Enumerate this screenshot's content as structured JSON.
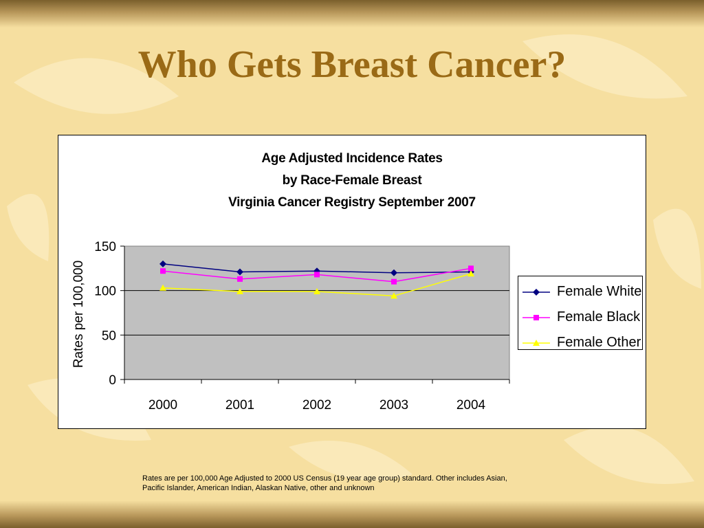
{
  "slide": {
    "title": "Who Gets Breast Cancer?",
    "footnote_line1": "Rates are per 100,000 Age Adjusted to 2000 US Census (19 year age group) standard.  Other includes Asian,",
    "footnote_line2": "Pacific Islander, American Indian, Alaskan Native, other and unknown",
    "title_color": "#9a6a16",
    "background_color": "#f6dfa0"
  },
  "chart_data": {
    "type": "line",
    "title_lines": [
      "Age Adjusted Incidence Rates",
      "by Race-Female Breast",
      "Virginia Cancer Registry September 2007"
    ],
    "xlabel": "",
    "ylabel": "Rates per 100,000",
    "categories": [
      "2000",
      "2001",
      "2002",
      "2003",
      "2004"
    ],
    "ylim": [
      0,
      150
    ],
    "yticks": [
      0,
      50,
      100,
      150
    ],
    "plot_background": "#c0c0c0",
    "grid": "horizontal major gridlines",
    "legend_position": "right",
    "series": [
      {
        "name": "Female White",
        "values": [
          130,
          121,
          122,
          120,
          121
        ],
        "color": "#000080",
        "marker": "diamond"
      },
      {
        "name": "Female Black",
        "values": [
          122,
          113,
          118,
          110,
          125
        ],
        "color": "#ff00ff",
        "marker": "square"
      },
      {
        "name": "Female Other",
        "values": [
          103,
          99,
          99,
          94,
          119
        ],
        "color": "#ffff00",
        "marker": "triangle"
      }
    ]
  }
}
